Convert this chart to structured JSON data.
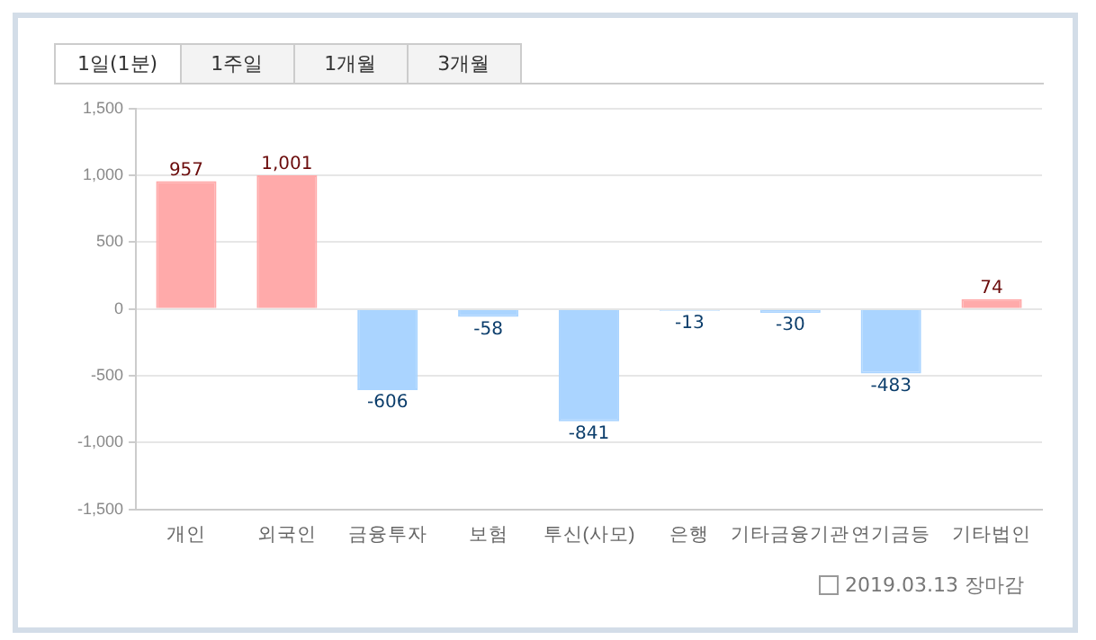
{
  "chart_data": {
    "type": "bar",
    "categories": [
      "개인",
      "외국인",
      "금융투자",
      "보험",
      "투신(사모)",
      "은행",
      "기타금융기관",
      "연기금등",
      "기타법인"
    ],
    "values": [
      957,
      1001,
      -606,
      -58,
      -841,
      -13,
      -30,
      -483,
      74
    ],
    "colors": [
      "#ffaaaa",
      "#ffaaaa",
      "#aad4ff",
      "#aad4ff",
      "#aad4ff",
      "#aad4ff",
      "#aad4ff",
      "#aad4ff",
      "#ffaaaa"
    ],
    "ylim": [
      -1500,
      1500
    ],
    "yticks": [
      {
        "value": -1500,
        "label": "-1,500"
      },
      {
        "value": -1000,
        "label": "-1,000"
      },
      -500,
      0,
      500,
      {
        "value": 1000,
        "label": "1,000"
      },
      {
        "value": 1500,
        "label": "1,500"
      }
    ],
    "value_labels": [
      "957",
      "1,001",
      "-606",
      "-58",
      "-841",
      "-13",
      "-30",
      "-483",
      "74"
    ],
    "grid": "y",
    "legend": false,
    "annotations": [
      "1일(1분)",
      "1주일",
      "1개월",
      "3개월",
      "2019.03.13 장마감"
    ]
  }
}
